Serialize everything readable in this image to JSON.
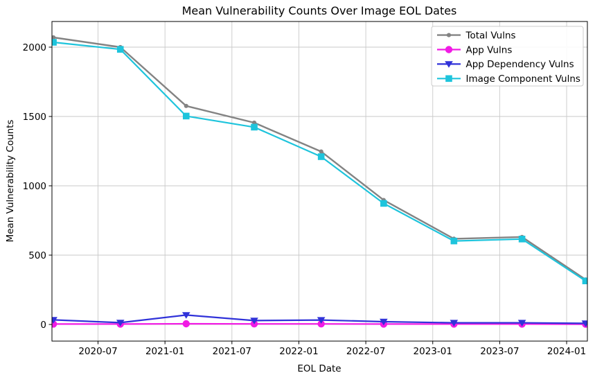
{
  "chart_data": {
    "type": "line",
    "title": "Mean Vulnerability Counts Over Image EOL Dates",
    "xlabel": "EOL Date",
    "ylabel": "Mean Vulnerability Counts",
    "x_tick_labels": [
      "2020-07",
      "2021-01",
      "2021-07",
      "2022-01",
      "2022-07",
      "2023-01",
      "2023-07",
      "2024-01"
    ],
    "x_tick_months": [
      4,
      10,
      16,
      22,
      28,
      34,
      40,
      46
    ],
    "y_ticks": [
      0,
      500,
      1000,
      1500,
      2000
    ],
    "xlim_months": [
      -0.13,
      47.86
    ],
    "ylim": [
      -120,
      2185
    ],
    "grid": true,
    "grid_color": "#c9c9c9",
    "axis_color": "#000000",
    "legend_position": "upper right",
    "x_dates": [
      "2020-03",
      "2020-09",
      "2021-03",
      "2021-09",
      "2022-03",
      "2022-09",
      "2023-03",
      "2023-09",
      "2024-03"
    ],
    "x_months": [
      0,
      6,
      11.9,
      18,
      24,
      29.6,
      35.9,
      42,
      47.7
    ],
    "series": [
      {
        "name": "Total Vulns",
        "color": "#838383",
        "marker": "dot",
        "line_width": 2.4,
        "values": [
          2070,
          2000,
          1576,
          1455,
          1247,
          897,
          618,
          631,
          324
        ]
      },
      {
        "name": "App Vulns",
        "color": "#f11be4",
        "marker": "circle",
        "line_width": 2.2,
        "values": [
          3,
          3,
          5,
          4,
          4,
          3,
          3,
          3,
          2
        ]
      },
      {
        "name": "App Dependency Vulns",
        "color": "#3032d9",
        "marker": "triangle-down",
        "line_width": 2.2,
        "values": [
          33,
          13,
          68,
          28,
          32,
          20,
          12,
          12,
          8
        ]
      },
      {
        "name": "Image Component Vulns",
        "color": "#1ec4dc",
        "marker": "square",
        "line_width": 2.2,
        "values": [
          2035,
          1984,
          1503,
          1423,
          1210,
          873,
          602,
          616,
          314
        ]
      }
    ]
  }
}
